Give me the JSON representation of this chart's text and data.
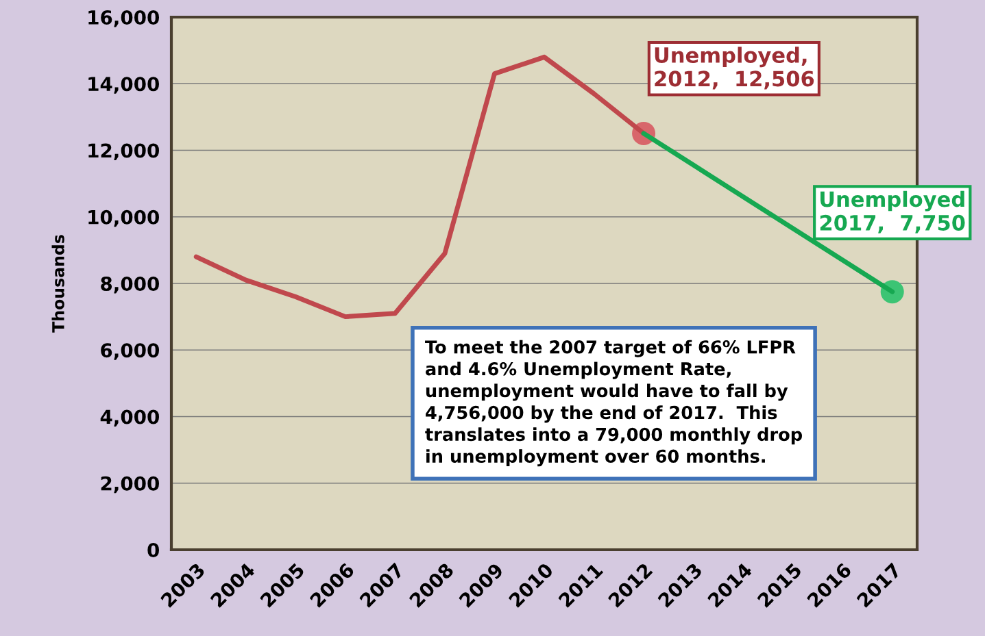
{
  "chart_data": {
    "type": "line",
    "ylabel": "Thousands",
    "categories": [
      "2003",
      "2004",
      "2005",
      "2006",
      "2007",
      "2008",
      "2009",
      "2010",
      "2011",
      "2012",
      "2013",
      "2014",
      "2015",
      "2016",
      "2017"
    ],
    "series": [
      {
        "color": "#c0484d",
        "values": [
          8800,
          8100,
          7600,
          7000,
          7100,
          8900,
          14300,
          14800,
          13700,
          12506,
          null,
          null,
          null,
          null,
          null
        ]
      },
      {
        "color": "#16a851",
        "values": [
          null,
          null,
          null,
          null,
          null,
          null,
          null,
          null,
          null,
          12506,
          null,
          null,
          null,
          null,
          7750
        ]
      },
      {
        "type": "scatter",
        "color": "#d8666b",
        "values": [
          null,
          null,
          null,
          null,
          null,
          null,
          null,
          null,
          null,
          12506,
          null,
          null,
          null,
          null,
          null
        ]
      },
      {
        "type": "scatter",
        "color": "#3cc474",
        "values": [
          null,
          null,
          null,
          null,
          null,
          null,
          null,
          null,
          null,
          null,
          null,
          null,
          null,
          null,
          7750
        ]
      }
    ],
    "ylim": [
      0,
      16000
    ],
    "yticks": [
      {
        "value": 0,
        "label": "0"
      },
      {
        "value": 2000,
        "label": "2,000"
      },
      {
        "value": 4000,
        "label": "4,000"
      },
      {
        "value": 6000,
        "label": "6,000"
      },
      {
        "value": 8000,
        "label": "8,000"
      },
      {
        "value": 10000,
        "label": "10,000"
      },
      {
        "value": 12000,
        "label": "12,000"
      },
      {
        "value": 14000,
        "label": "14,000"
      },
      {
        "value": 16000,
        "label": "16,000"
      }
    ],
    "grid": "y",
    "annotations": [
      {
        "text": "Unemployed,\n2012,  12,506",
        "x": "2012",
        "y": 12506
      },
      {
        "text": "Unemployed\n2017,  7,750",
        "x": "2017",
        "y": 7750
      },
      "To meet the 2007 target of 66% LFPR\nand 4.6% Unemployment Rate,\nunemployment would have to fall by\n4,756,000 by the end of 2017.  This\ntranslates into a 79,000 monthly drop\nin unemployment over 60 months."
    ]
  }
}
